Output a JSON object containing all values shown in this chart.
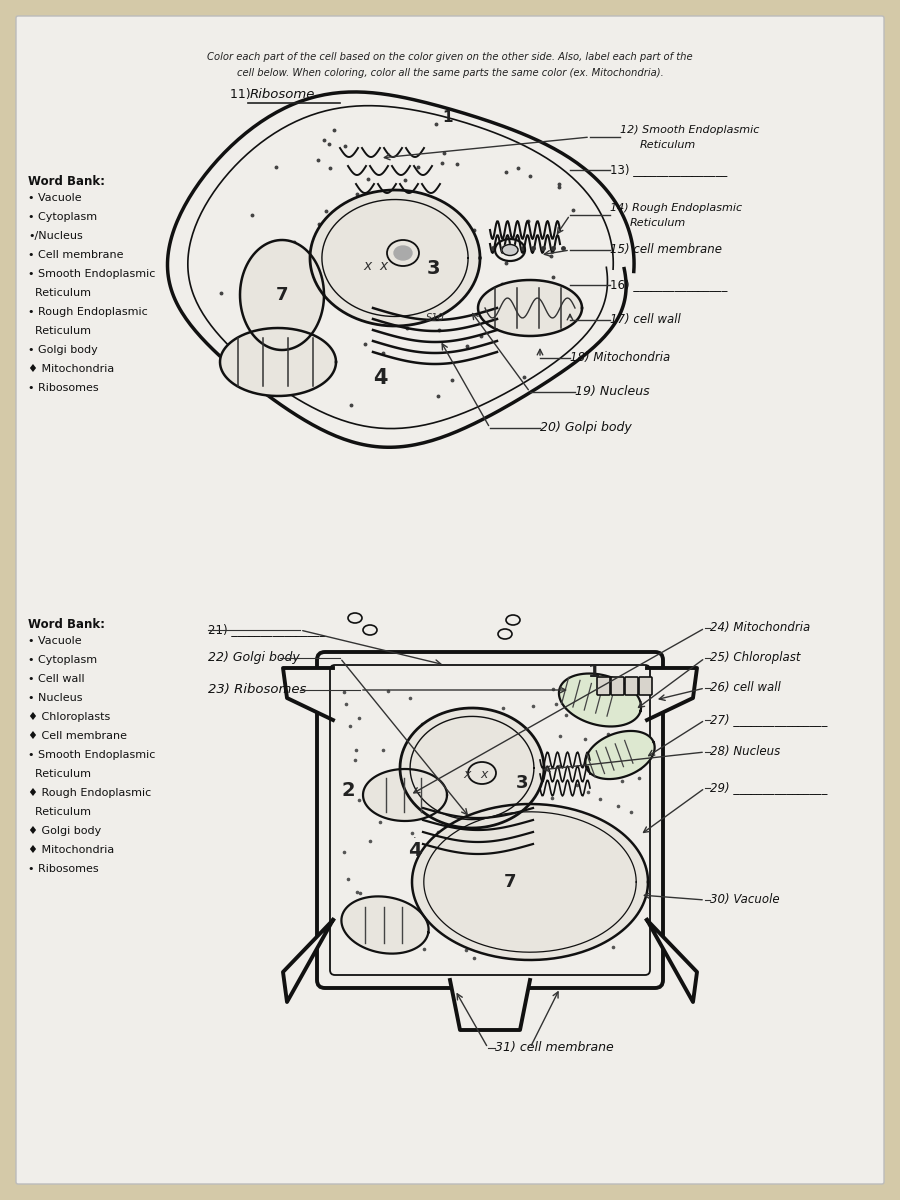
{
  "bg_color": "#d4c9a8",
  "paper_color": "#f0eeea",
  "title_line1": "Color each part of the cell based on the color given on the other side. Also, label each part of the",
  "title_line2": "cell below. When coloring, color all the same parts the same color (ex. Mitochondria).",
  "label_11": "11) Ribosome",
  "wordbank1_title": "Word Bank:",
  "wordbank1_items": [
    "• Vacuole",
    "• Cytoplasm",
    "•/Nucleus",
    "• Cell membrane",
    "• Smooth Endoplasmic",
    "  Reticulum",
    "• Rough Endoplasmic",
    "  Reticulum",
    "• Golgi body",
    "♦ Mitochondria",
    "• Ribosomes"
  ],
  "wordbank2_title": "Word Bank:",
  "wordbank2_items": [
    "• Vacuole",
    "• Cytoplasm",
    "• Cell wall",
    "• Nucleus",
    "♦ Chloroplasts",
    "♦ Cell membrane",
    "• Smooth Endoplasmic",
    "  Reticulum",
    "♦ Rough Endoplasmic",
    "  Reticulum",
    "♦ Golgi body",
    "♦ Mitochondria",
    "• Ribosomes"
  ]
}
